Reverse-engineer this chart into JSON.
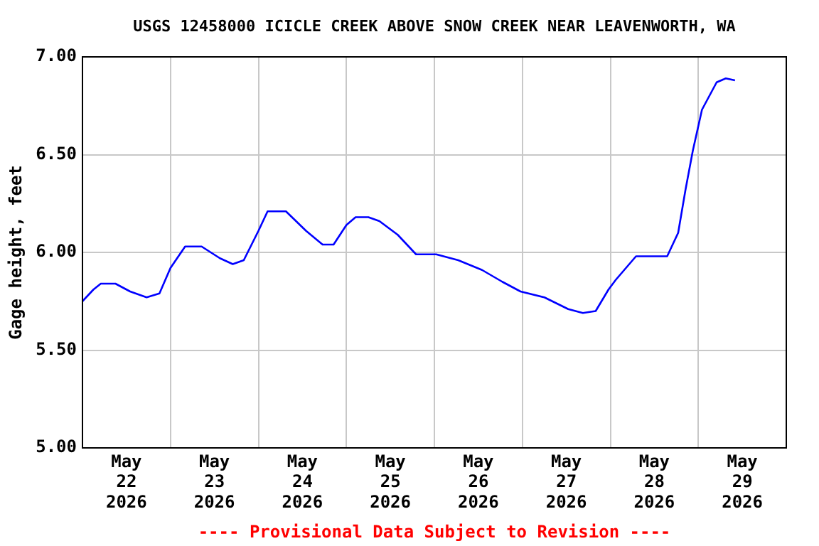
{
  "chart_data": {
    "type": "line",
    "title": "USGS 12458000 ICICLE CREEK ABOVE SNOW CREEK NEAR LEAVENWORTH, WA",
    "ylabel": "Gage height, feet",
    "annotations": [
      "---- Provisional Data Subject to Revision ----"
    ],
    "x": [
      "2026-05-22T00:00",
      "2026-05-22T03:00",
      "2026-05-22T05:00",
      "2026-05-22T09:00",
      "2026-05-22T13:00",
      "2026-05-22T17:30",
      "2026-05-22T21:00",
      "2026-05-23T00:00",
      "2026-05-23T04:00",
      "2026-05-23T08:30",
      "2026-05-23T13:30",
      "2026-05-23T17:00",
      "2026-05-23T20:00",
      "2026-05-24T00:00",
      "2026-05-24T02:30",
      "2026-05-24T07:30",
      "2026-05-24T13:00",
      "2026-05-24T17:30",
      "2026-05-24T20:30",
      "2026-05-25T00:00",
      "2026-05-25T02:30",
      "2026-05-25T06:00",
      "2026-05-25T09:00",
      "2026-05-25T14:00",
      "2026-05-25T19:00",
      "2026-05-26T00:30",
      "2026-05-26T06:30",
      "2026-05-26T13:00",
      "2026-05-26T18:30",
      "2026-05-26T23:30",
      "2026-05-27T06:00",
      "2026-05-27T12:30",
      "2026-05-27T16:30",
      "2026-05-27T20:00",
      "2026-05-27T23:30",
      "2026-05-28T01:30",
      "2026-05-28T07:00",
      "2026-05-28T15:30",
      "2026-05-28T18:30",
      "2026-05-28T20:30",
      "2026-05-28T22:30",
      "2026-05-29T01:00",
      "2026-05-29T05:00",
      "2026-05-29T07:30",
      "2026-05-29T10:00"
    ],
    "series": [
      {
        "color": "#0000ff",
        "values": [
          5.75,
          5.81,
          5.84,
          5.84,
          5.8,
          5.77,
          5.79,
          5.92,
          6.03,
          6.03,
          5.97,
          5.94,
          5.96,
          6.11,
          6.21,
          6.21,
          6.11,
          6.04,
          6.04,
          6.14,
          6.18,
          6.18,
          6.16,
          6.09,
          5.99,
          5.99,
          5.96,
          5.91,
          5.85,
          5.8,
          5.77,
          5.71,
          5.69,
          5.7,
          5.81,
          5.86,
          5.98,
          5.98,
          6.1,
          6.32,
          6.52,
          6.73,
          6.87,
          6.89,
          6.88
        ]
      }
    ],
    "xlim": [
      "2026-05-22T00:00",
      "2026-05-30T00:00"
    ],
    "xticks": [
      {
        "value": "2026-05-22T12:00",
        "label": "May\n22\n2026"
      },
      {
        "value": "2026-05-23T00:00",
        "label": null
      },
      {
        "value": "2026-05-23T12:00",
        "label": "May\n23\n2026"
      },
      {
        "value": "2026-05-24T00:00",
        "label": null
      },
      {
        "value": "2026-05-24T12:00",
        "label": "May\n24\n2026"
      },
      {
        "value": "2026-05-25T00:00",
        "label": null
      },
      {
        "value": "2026-05-25T12:00",
        "label": "May\n25\n2026"
      },
      {
        "value": "2026-05-26T00:00",
        "label": null
      },
      {
        "value": "2026-05-26T12:00",
        "label": "May\n26\n2026"
      },
      {
        "value": "2026-05-27T00:00",
        "label": null
      },
      {
        "value": "2026-05-27T12:00",
        "label": "May\n27\n2026"
      },
      {
        "value": "2026-05-28T00:00",
        "label": null
      },
      {
        "value": "2026-05-28T12:00",
        "label": "May\n28\n2026"
      },
      {
        "value": "2026-05-29T00:00",
        "label": null
      },
      {
        "value": "2026-05-29T12:00",
        "label": "May\n29\n2026"
      }
    ],
    "ylim": [
      5,
      7
    ],
    "yticks": [
      {
        "value": 5,
        "label": "5.00"
      },
      {
        "value": 5.5,
        "label": "5.50"
      },
      {
        "value": 6,
        "label": "6.00"
      },
      {
        "value": 6.5,
        "label": "6.50"
      },
      {
        "value": 7,
        "label": "7.00"
      }
    ],
    "grid": true,
    "legend": false,
    "marker": "none",
    "line_style": "solid"
  }
}
